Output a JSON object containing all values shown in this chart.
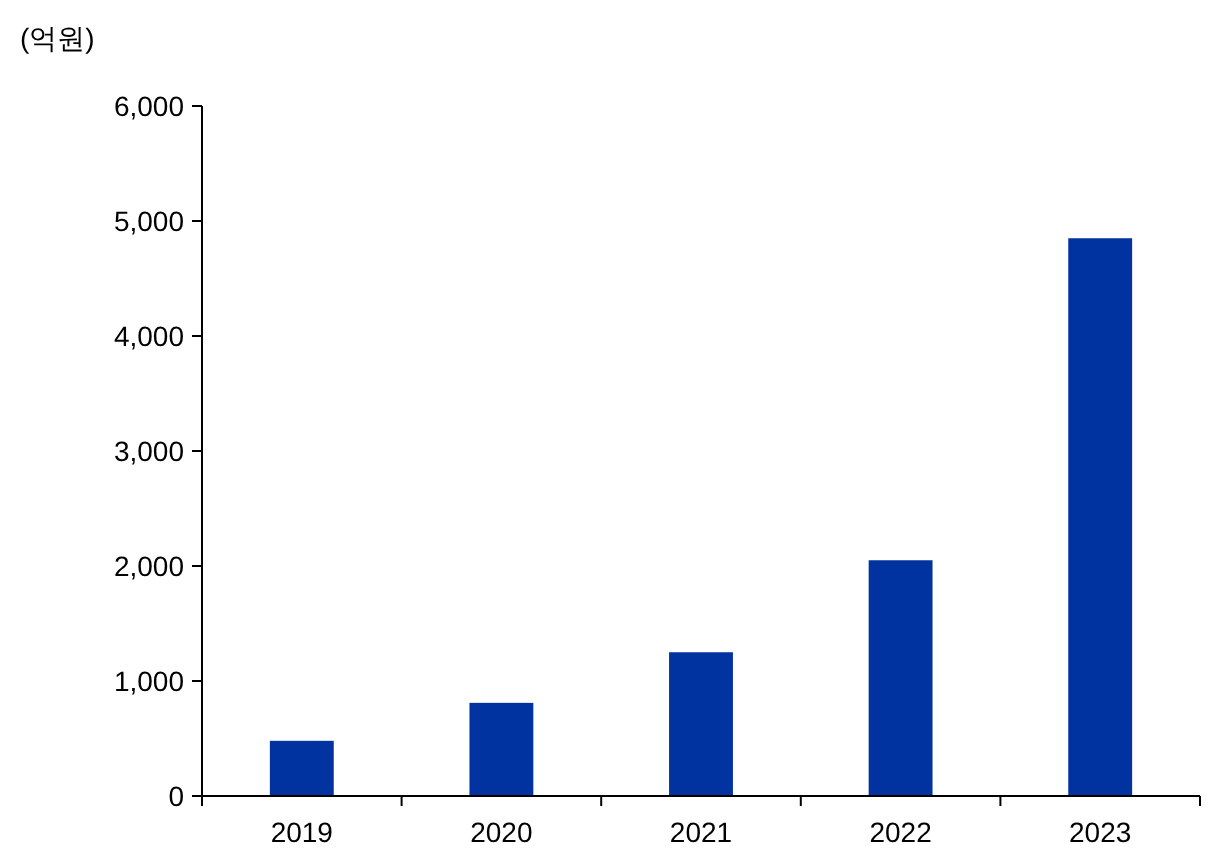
{
  "chart_data": {
    "type": "bar",
    "ylabel": "(억원)",
    "categories": [
      "2019",
      "2020",
      "2021",
      "2022",
      "2023"
    ],
    "values": [
      480,
      810,
      1250,
      2050,
      4850
    ],
    "color": "#0033a0",
    "ylim": [
      0,
      6000
    ],
    "yticks": [
      0,
      {
        "value": 1000,
        "label": "1,000"
      },
      {
        "value": 2000,
        "label": "2,000"
      },
      {
        "value": 3000,
        "label": "3,000"
      },
      {
        "value": 4000,
        "label": "4,000"
      },
      {
        "value": 5000,
        "label": "5,000"
      },
      {
        "value": 6000,
        "label": "6,000"
      }
    ]
  }
}
